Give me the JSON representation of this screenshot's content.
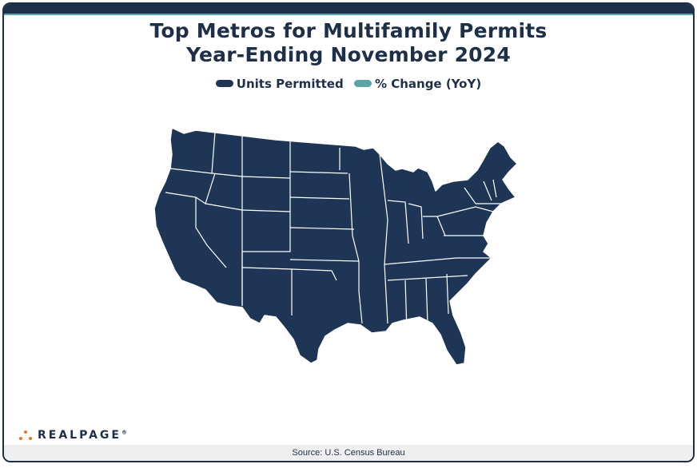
{
  "title": {
    "line1": "Top Metros for Multifamily Permits",
    "line2": "Year-Ending November 2024"
  },
  "legend": [
    {
      "label": "Units Permitted",
      "color": "#1e3556"
    },
    {
      "label": "% Change (YoY)",
      "color": "#5aa6a6"
    }
  ],
  "map": {
    "region": "Contiguous United States",
    "fill_color": "#1e3556",
    "border_color": "#ffffff"
  },
  "brand": {
    "logo_text": "REALPAGE",
    "logo_tm": "®",
    "dot_color": "#e8722a"
  },
  "footer": {
    "source": "Source: U.S. Census Bureau"
  }
}
